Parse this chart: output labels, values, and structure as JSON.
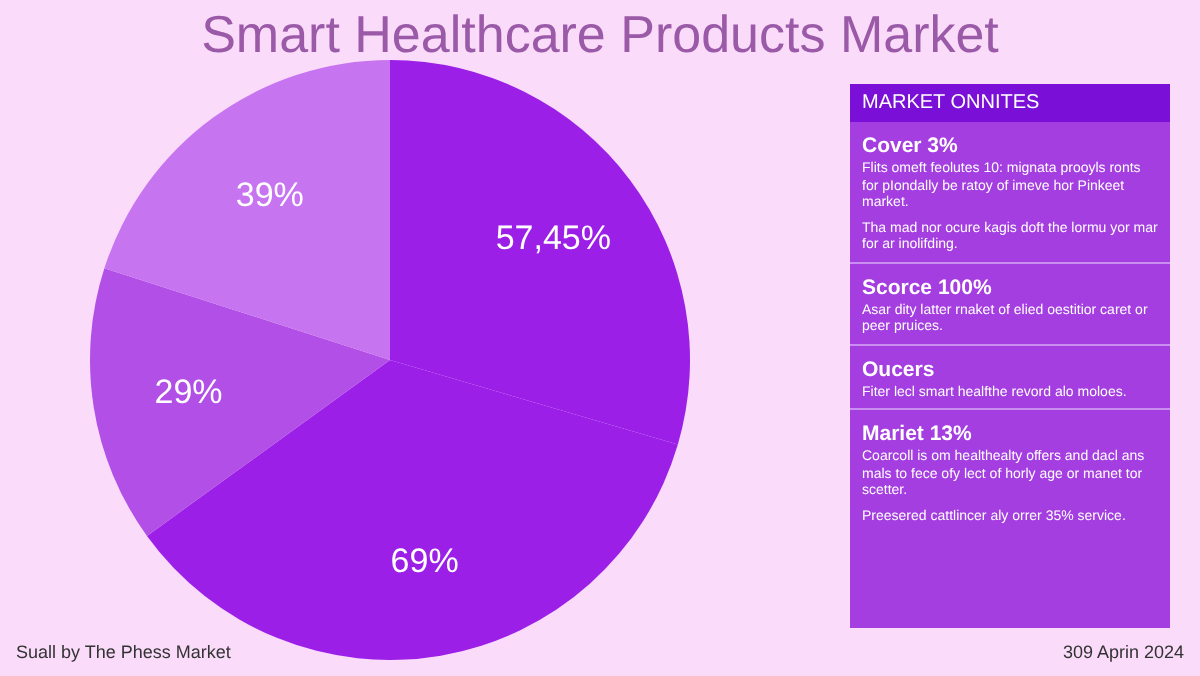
{
  "chart_data": {
    "type": "pie",
    "title": "Smart Healthcare Products Market",
    "categories": [
      null,
      null,
      null,
      null
    ],
    "values": [
      57.45,
      69,
      29,
      39
    ],
    "value_labels": [
      "57,45%",
      "69%",
      "29%",
      "39%"
    ],
    "colors": [
      "#9c1fe8",
      "#9c1fe8",
      "#b24fe6",
      "#c774f0"
    ],
    "legend": false,
    "annotations": [
      "MARKET ONNITES",
      "Cover 3%",
      "Flits omeft feolutes 10: mignata prooyls ronts for pIondally be ratoy of imeve hor Pinkeet market.",
      "Tha mad nor ocure kagis doft the lormu yor mar for ar inolifding.",
      "Scorce 100%",
      "Asar dity latter rnaket of elied oestitior caret or peer pruices.",
      "Oucers",
      "Fiter lecl smart healfthe revord alo moloes.",
      "Mariet 13%",
      "Coarcoll is om healthealty offers and dacl ans mals to fece ofy lect of horly age or manet tor scetter.",
      "Preesered cattlincer aly orrer 35% service.",
      "Suall by The Phess Market",
      "309 Aprin 2024"
    ]
  }
}
